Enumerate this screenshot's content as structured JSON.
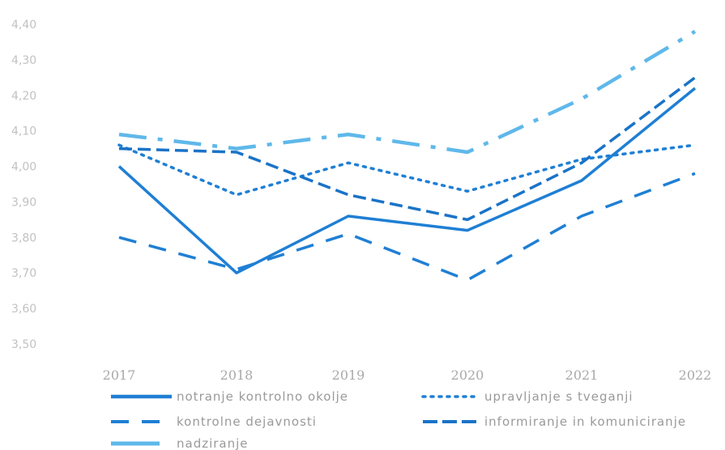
{
  "chart_data": {
    "type": "line",
    "title": "",
    "xlabel": "",
    "ylabel": "",
    "categories": [
      "2017",
      "2018",
      "2019",
      "2020",
      "2021",
      "2022"
    ],
    "ylim": [
      3.5,
      4.4
    ],
    "yticks": [
      "4,40",
      "4,30",
      "4,20",
      "4,10",
      "4,00",
      "3,90",
      "3,80",
      "3,70",
      "3,60",
      "3,50"
    ],
    "grid": false,
    "legend_position": "bottom",
    "series": [
      {
        "name": "notranje kontrolno okolje",
        "values": [
          4.0,
          3.7,
          3.86,
          3.82,
          3.96,
          4.22
        ],
        "color": "#1f7fd4",
        "style": "solid"
      },
      {
        "name": "upravljanje s tveganji",
        "values": [
          4.06,
          3.92,
          4.01,
          3.93,
          4.02,
          4.06
        ],
        "color": "#1f7fd4",
        "style": "dotted"
      },
      {
        "name": "kontrolne dejavnosti",
        "values": [
          3.8,
          3.71,
          3.81,
          3.68,
          3.86,
          3.98
        ],
        "color": "#1f7fd4",
        "style": "longdash"
      },
      {
        "name": "informiranje in komuniciranje",
        "values": [
          4.05,
          4.04,
          3.92,
          3.85,
          4.01,
          4.25
        ],
        "color": "#1a73c7",
        "style": "dash"
      },
      {
        "name": "nadziranje",
        "values": [
          4.09,
          4.05,
          4.09,
          4.04,
          4.19,
          4.38
        ],
        "color": "#5fb8ea",
        "style": "dashdot"
      }
    ]
  }
}
